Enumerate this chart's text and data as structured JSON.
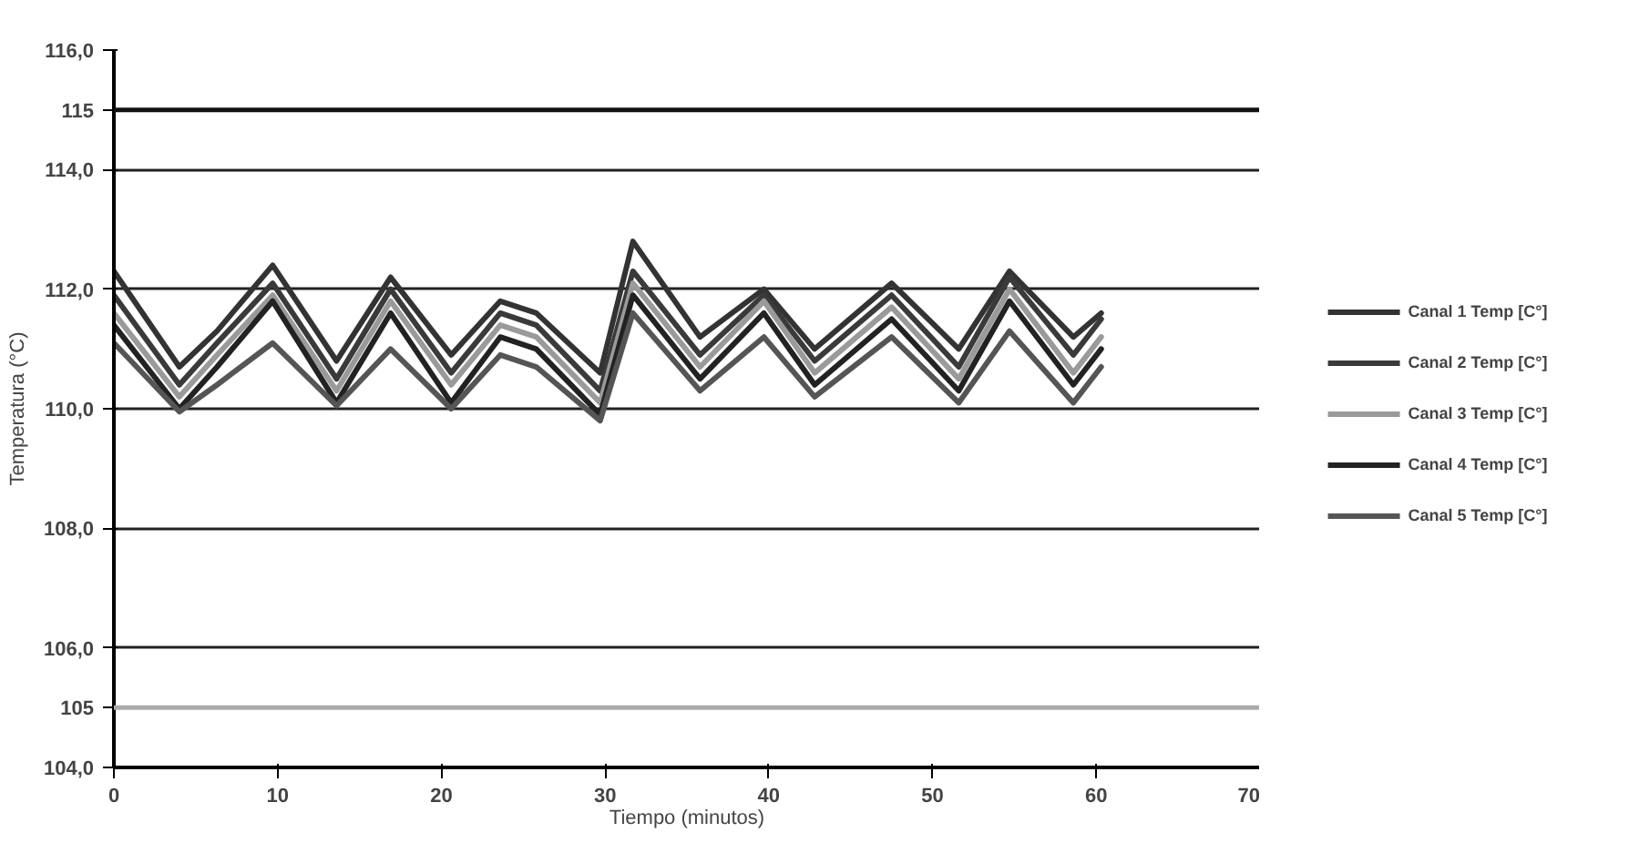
{
  "chart_data": {
    "type": "line",
    "xlabel": "Tiempo (minutos)",
    "ylabel": "Temperatura (°C)",
    "x": [
      0,
      4,
      6.3,
      9.7,
      13.6,
      16.9,
      20.6,
      23.6,
      25.8,
      29.7,
      31.7,
      35.8,
      39.7,
      42.8,
      47.5,
      51.6,
      54.7,
      58.6,
      60.3
    ],
    "series": [
      {
        "name": "Canal 1 Temp [C°]",
        "color": "#333333",
        "values": [
          112.3,
          110.7,
          111.3,
          112.4,
          110.8,
          112.2,
          110.9,
          111.8,
          111.6,
          110.6,
          112.8,
          111.2,
          112.0,
          111.0,
          112.1,
          111.0,
          112.3,
          111.2,
          111.6
        ]
      },
      {
        "name": "Canal 2 Temp [C°]",
        "color": "#3a3a3a",
        "values": [
          111.9,
          110.4,
          111.1,
          112.1,
          110.5,
          112.0,
          110.6,
          111.6,
          111.4,
          110.3,
          112.3,
          110.9,
          111.9,
          110.8,
          111.9,
          110.7,
          112.2,
          110.9,
          111.5
        ]
      },
      {
        "name": "Canal 3 Temp [C°]",
        "color": "#9a9a9a",
        "values": [
          111.6,
          110.2,
          110.9,
          111.9,
          110.3,
          111.8,
          110.4,
          111.4,
          111.2,
          110.1,
          112.1,
          110.7,
          111.8,
          110.6,
          111.7,
          110.5,
          112.0,
          110.6,
          111.2
        ]
      },
      {
        "name": "Canal 4 Temp [C°]",
        "color": "#222222",
        "values": [
          111.4,
          110.0,
          110.7,
          111.8,
          110.1,
          111.6,
          110.1,
          111.2,
          111.0,
          109.9,
          111.9,
          110.5,
          111.6,
          110.4,
          111.5,
          110.3,
          111.8,
          110.4,
          111.0
        ]
      },
      {
        "name": "Canal 5 Temp [C°]",
        "color": "#555555",
        "values": [
          111.1,
          109.95,
          110.4,
          111.1,
          110.05,
          111.0,
          110.0,
          110.9,
          110.7,
          109.8,
          111.6,
          110.3,
          111.2,
          110.2,
          111.2,
          110.1,
          111.3,
          110.1,
          110.7
        ]
      }
    ],
    "xlim": [
      0,
      70
    ],
    "xticks": [
      0,
      10,
      20,
      30,
      40,
      50,
      60,
      70
    ],
    "ylim": [
      104,
      116
    ],
    "yticks": [
      {
        "value": 104,
        "label": "104,0"
      },
      {
        "value": 105,
        "label": "105"
      },
      {
        "value": 106,
        "label": "106,0"
      },
      {
        "value": 108,
        "label": "108,0"
      },
      {
        "value": 110,
        "label": "110,0"
      },
      {
        "value": 112,
        "label": "112,0"
      },
      {
        "value": 114,
        "label": "114,0"
      },
      {
        "value": 115,
        "label": "115"
      },
      {
        "value": 116,
        "label": "116,0"
      }
    ],
    "ref_lines": [
      {
        "axis": "y",
        "value": 115,
        "color": "#111111"
      },
      {
        "axis": "y",
        "value": 105,
        "color": "#aaaaaa"
      }
    ],
    "grid": "y",
    "legend": "right",
    "marker": "none",
    "line_style": "solid"
  }
}
